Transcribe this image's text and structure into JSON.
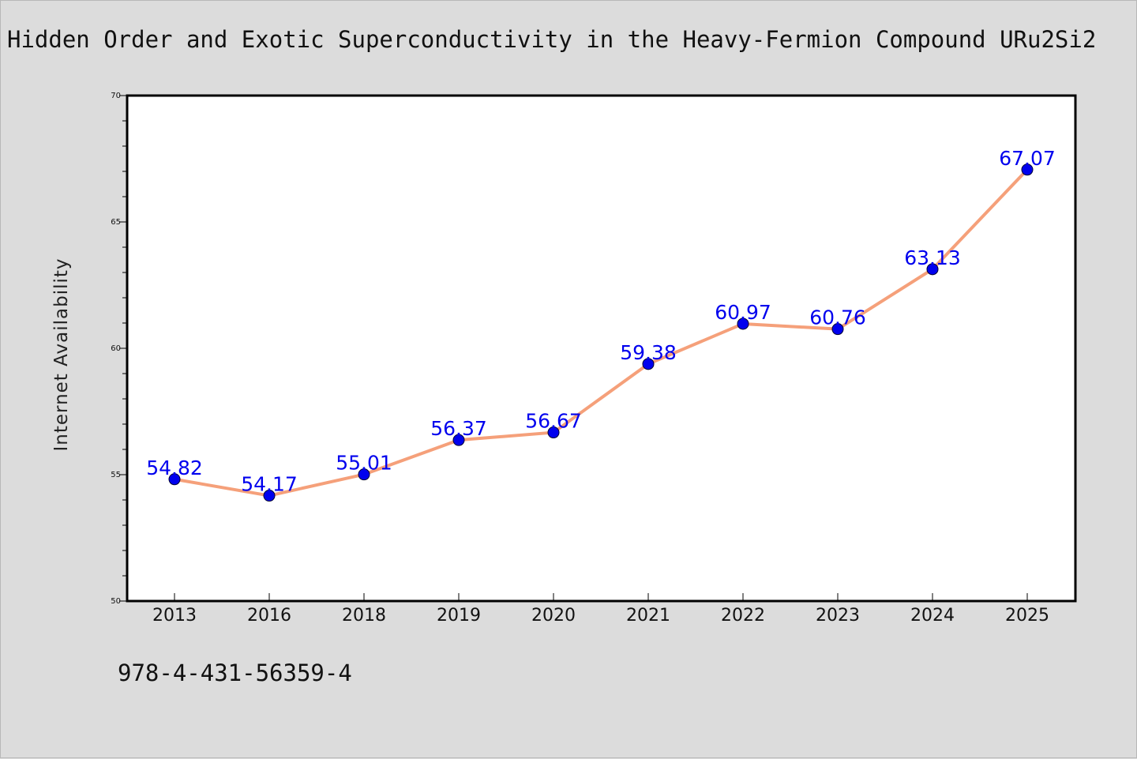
{
  "header": {
    "title": "Hidden Order and Exotic Superconductivity in the Heavy-Fermion Compound URu2Si2"
  },
  "footer": {
    "code": "978-4-431-56359-4"
  },
  "colors": {
    "background": "#dcdcdc",
    "plot_background": "#ffffff",
    "line": "#f5a07a",
    "marker": "#0000ee",
    "data_label": "#0000ee"
  },
  "chart_data": {
    "type": "line",
    "title": "Hidden Order and Exotic Superconductivity in the Heavy-Fermion Compound URu2Si2",
    "xlabel": "",
    "ylabel": "Internet Availability",
    "categories": [
      "2013",
      "2016",
      "2018",
      "2019",
      "2020",
      "2021",
      "2022",
      "2023",
      "2024",
      "2025"
    ],
    "series": [
      {
        "values": [
          54.82,
          54.17,
          55.01,
          56.37,
          56.67,
          59.38,
          60.97,
          60.76,
          63.13,
          67.07
        ]
      }
    ],
    "data_labels": [
      "54.82",
      "54.17",
      "55.01",
      "56.37",
      "56.67",
      "59.38",
      "60.97",
      "60.76",
      "63.13",
      "67.07"
    ],
    "ylim": [
      50,
      70
    ],
    "yticks": [
      50,
      55,
      60,
      65,
      70
    ],
    "grid": false,
    "legend": "none"
  }
}
